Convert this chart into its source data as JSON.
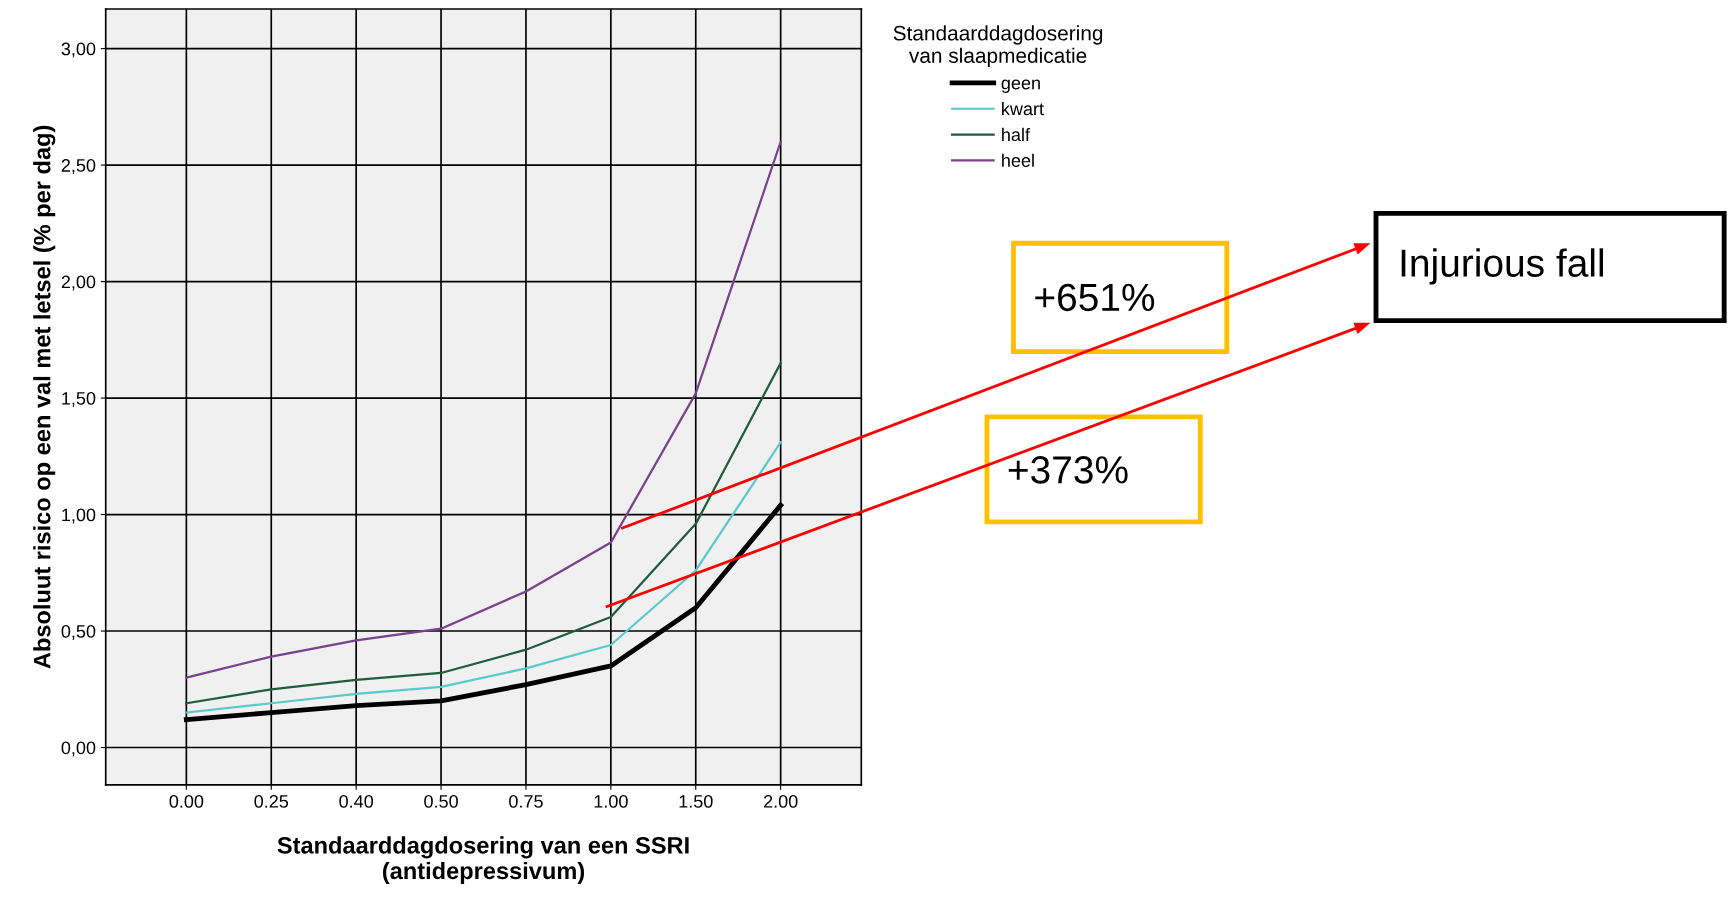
{
  "chart_data": {
    "type": "line",
    "xlabel": "Standaarddagdosering van een SSRI\n(antidepressivum)",
    "ylabel": "Absoluut risico op een val met letsel (% per dag)",
    "legend_title": "Standaarddagdosering\nvan slaapmedicatie",
    "categories": [
      "0.00",
      "0.25",
      "0.40",
      "0.50",
      "0.75",
      "1.00",
      "1.50",
      "2.00"
    ],
    "series": [
      {
        "name": "geen",
        "color": "#000000",
        "values": [
          0.12,
          0.15,
          0.18,
          0.2,
          0.27,
          0.35,
          0.6,
          1.04
        ]
      },
      {
        "name": "kwart",
        "color": "#5bc8cc",
        "values": [
          0.15,
          0.19,
          0.23,
          0.26,
          0.34,
          0.44,
          0.76,
          1.31
        ]
      },
      {
        "name": "half",
        "color": "#1e5c3a",
        "values": [
          0.19,
          0.25,
          0.29,
          0.32,
          0.42,
          0.56,
          0.96,
          1.65
        ]
      },
      {
        "name": "heel",
        "color": "#7b3f8c",
        "values": [
          0.3,
          0.39,
          0.46,
          0.51,
          0.67,
          0.88,
          1.52,
          2.6
        ]
      }
    ],
    "ylim": [
      -0.16,
      3.17
    ],
    "yticks": [
      {
        "value": 0,
        "label": "0,00"
      },
      {
        "value": 0.5,
        "label": "0,50"
      },
      {
        "value": 1.0,
        "label": "1,00"
      },
      {
        "value": 1.5,
        "label": "1,50"
      },
      {
        "value": 2.0,
        "label": "2,00"
      },
      {
        "value": 2.5,
        "label": "2,50"
      },
      {
        "value": 3.0,
        "label": "3,00"
      }
    ],
    "grid": true,
    "legend": "top right",
    "marker": "none",
    "line_style": "solid",
    "annotations": [
      "+651%",
      "+373%",
      "Injurious fall"
    ]
  }
}
